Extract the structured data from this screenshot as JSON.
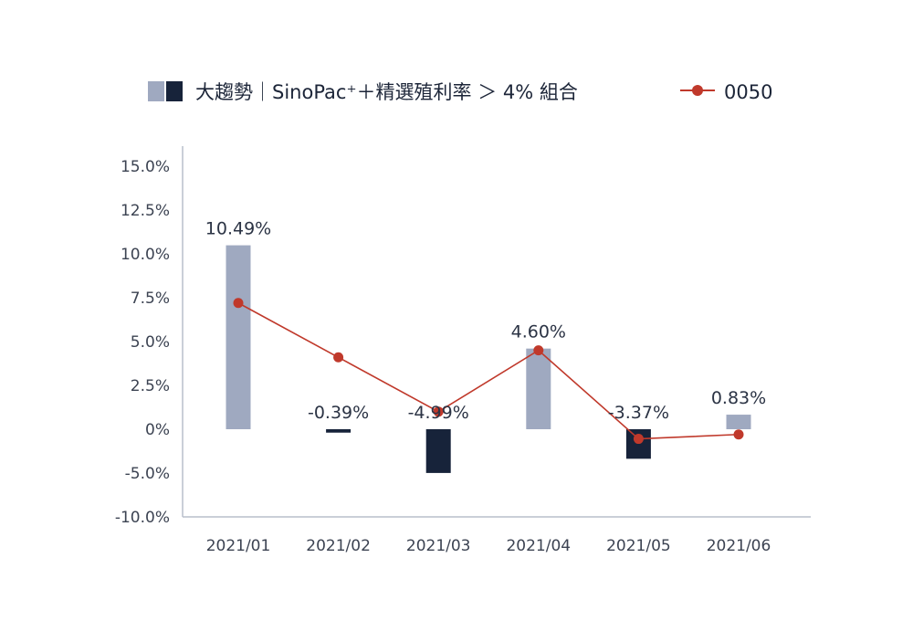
{
  "chart_data": {
    "type": "bar",
    "categories": [
      "2021/01",
      "2021/02",
      "2021/03",
      "2021/04",
      "2021/05",
      "2021/06"
    ],
    "series": [
      {
        "name": "大趨勢｜SinoPac⁺＋精選殖利率 ＞ 4% 組合",
        "type": "bar",
        "values": [
          10.49,
          -0.39,
          -4.99,
          4.6,
          -3.37,
          0.83
        ],
        "labels": [
          "10.49%",
          "-0.39%",
          "-4.99%",
          "4.60%",
          "-3.37%",
          "0.83%"
        ],
        "color_positive": "#9fa9c0",
        "color_negative": "#17233a"
      },
      {
        "name": "0050",
        "type": "line",
        "values": [
          7.2,
          4.1,
          1.0,
          4.5,
          -1.1,
          -0.6
        ],
        "color": "#c0392b"
      }
    ],
    "y_ticks": [
      "15.0%",
      "12.5%",
      "10.0%",
      "7.5%",
      "5.0%",
      "2.5%",
      "0%",
      "-5.0%",
      "-10.0%"
    ],
    "ylim": [
      -10,
      15
    ],
    "legend_position": "top",
    "grid": false,
    "xlabel": "",
    "ylabel": ""
  }
}
